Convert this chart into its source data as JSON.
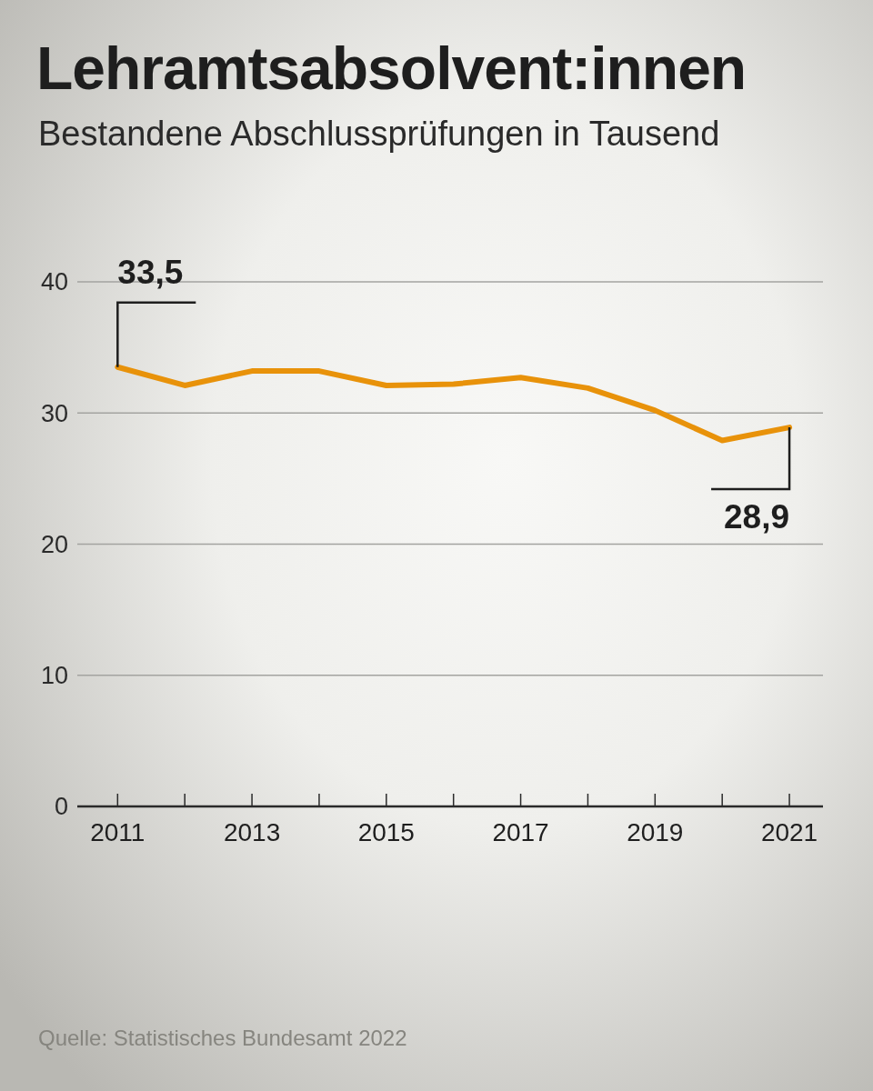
{
  "chart_data": {
    "type": "line",
    "title": "Lehramtsabsolvent:innen",
    "subtitle": "Bestandene Abschlussprüfungen in Tausend",
    "annotations": [
      "Quelle: Statistisches Bundesamt 2022"
    ],
    "x": [
      2011,
      2012,
      2013,
      2014,
      2015,
      2016,
      2017,
      2018,
      2019,
      2020,
      2021
    ],
    "values": [
      33.5,
      32.1,
      33.2,
      33.2,
      32.1,
      32.2,
      32.7,
      31.9,
      30.2,
      27.9,
      28.9
    ],
    "value_labels": [
      "33,5",
      null,
      null,
      null,
      null,
      null,
      null,
      null,
      null,
      null,
      "28,9"
    ],
    "color": "#e8920a",
    "xlim": [
      2010.4,
      2021.5
    ],
    "xticks": [
      2011,
      {
        "value": 2012,
        "label": null
      },
      2013,
      {
        "value": 2014,
        "label": null
      },
      2015,
      {
        "value": 2016,
        "label": null
      },
      2017,
      {
        "value": 2018,
        "label": null
      },
      2019,
      {
        "value": 2020,
        "label": null
      },
      2021
    ],
    "ylim": [
      0,
      40
    ],
    "yticks": [
      0,
      10,
      20,
      30,
      40
    ],
    "grid": "y"
  }
}
